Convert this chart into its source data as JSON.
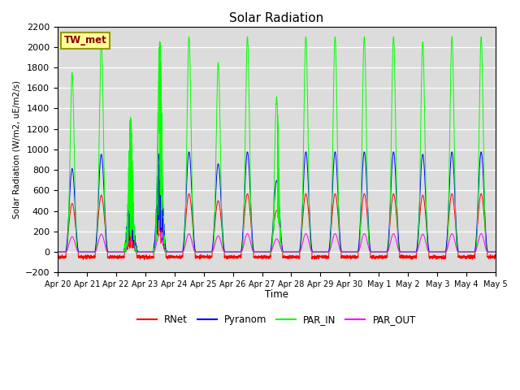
{
  "title": "Solar Radiation",
  "ylabel": "Solar Radiation (W/m2, uE/m2/s)",
  "xlabel": "Time",
  "ylim": [
    -200,
    2200
  ],
  "yticks": [
    -200,
    0,
    200,
    400,
    600,
    800,
    1000,
    1200,
    1400,
    1600,
    1800,
    2000,
    2200
  ],
  "x_labels": [
    "Apr 20",
    "Apr 21",
    "Apr 22",
    "Apr 23",
    "Apr 24",
    "Apr 25",
    "Apr 26",
    "Apr 27",
    "Apr 28",
    "Apr 29",
    "Apr 30",
    "May 1",
    "May 2",
    "May 3",
    "May 4",
    "May 5"
  ],
  "station_label": "TW_met",
  "colors": {
    "RNet": "#ff0000",
    "Pyranom": "#0000ff",
    "PAR_IN": "#00ff00",
    "PAR_OUT": "#ff00ff"
  },
  "legend_labels": [
    "RNet",
    "Pyranom",
    "PAR_IN",
    "PAR_OUT"
  ],
  "background_color": "#dcdcdc",
  "n_days": 15,
  "points_per_day": 288,
  "par_in_peaks": [
    1750,
    2050,
    1300,
    2050,
    2100,
    1850,
    2100,
    1500,
    2100,
    2100,
    2100,
    2100,
    2050,
    2100,
    2100
  ],
  "pyranom_scale": 0.465,
  "rnet_scale": 0.27,
  "rnet_night": -50,
  "par_out_scale": 0.085,
  "day_start": 0.28,
  "day_end": 0.72,
  "peak_sharpness": 4.0
}
